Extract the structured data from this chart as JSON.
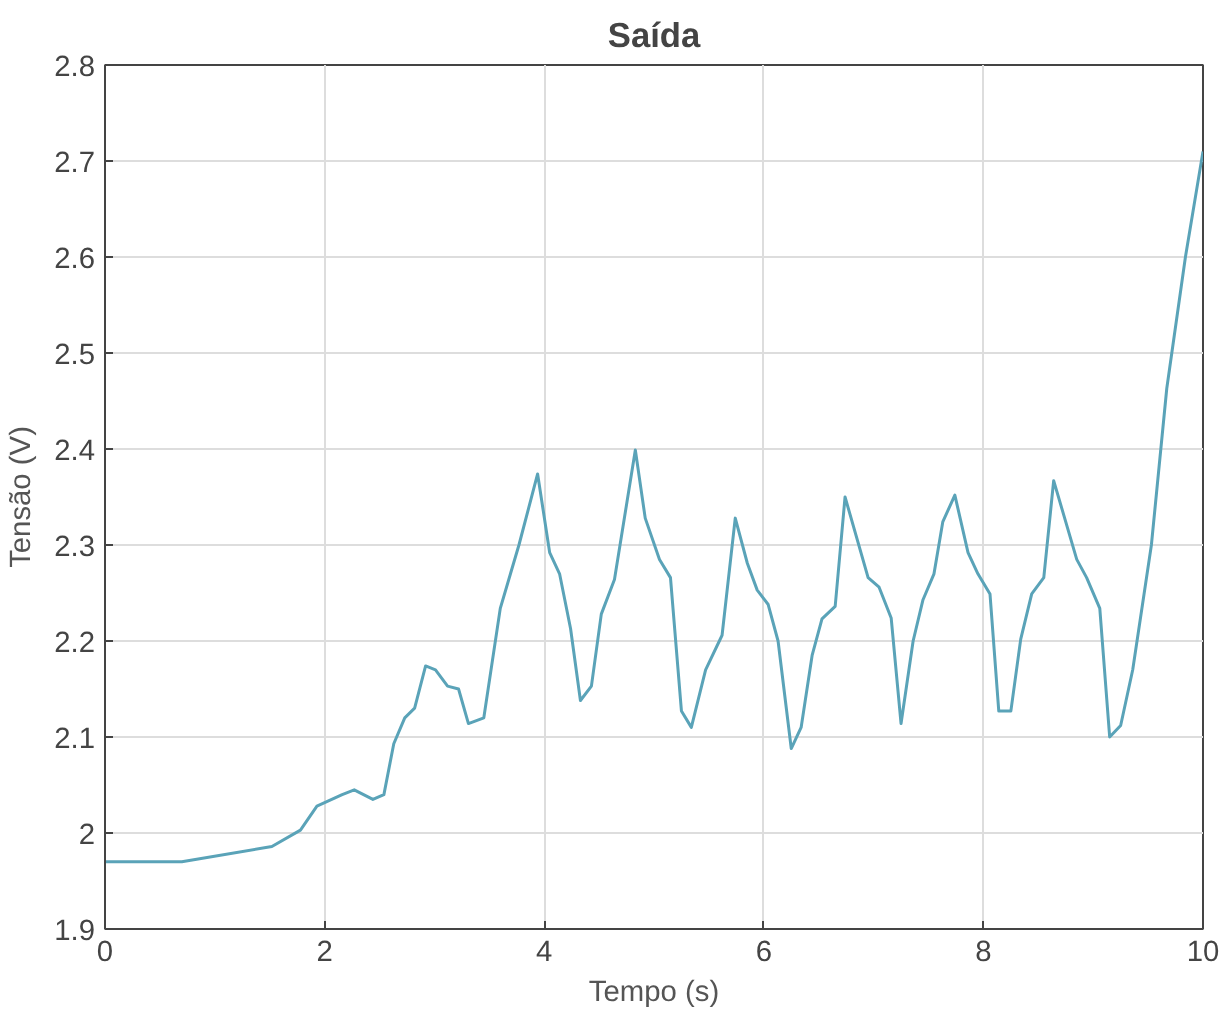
{
  "chart_data": {
    "type": "line",
    "title": "Saída",
    "xlabel": "Tempo (s)",
    "ylabel": "Tensão (V)",
    "xlim": [
      0,
      10
    ],
    "ylim": [
      1.9,
      2.8
    ],
    "xticks": [
      0,
      2,
      4,
      6,
      8,
      10
    ],
    "yticks": [
      1.9,
      2,
      2.1,
      2.2,
      2.3,
      2.4,
      2.5,
      2.6,
      2.7,
      2.8
    ],
    "grid": true,
    "marker": "none",
    "line_style": "solid",
    "series": [
      {
        "color": "#5aa3b8",
        "x": [
          0,
          0.7,
          1.52,
          1.78,
          1.93,
          2.16,
          2.27,
          2.44,
          2.54,
          2.63,
          2.73,
          2.82,
          2.92,
          3.01,
          3.12,
          3.22,
          3.31,
          3.45,
          3.6,
          3.77,
          3.94,
          4.05,
          4.14,
          4.24,
          4.33,
          4.43,
          4.52,
          4.64,
          4.83,
          4.92,
          5.05,
          5.15,
          5.25,
          5.34,
          5.47,
          5.62,
          5.74,
          5.85,
          5.94,
          6.04,
          6.13,
          6.25,
          6.34,
          6.44,
          6.53,
          6.65,
          6.74,
          6.95,
          7.05,
          7.16,
          7.25,
          7.36,
          7.45,
          7.55,
          7.63,
          7.74,
          7.86,
          7.95,
          8.06,
          8.14,
          8.25,
          8.34,
          8.44,
          8.55,
          8.64,
          8.74,
          8.85,
          8.94,
          9.06,
          9.15,
          9.25,
          9.36,
          9.53,
          9.67,
          9.84,
          10
        ],
        "values": [
          1.97,
          1.97,
          1.986,
          2.003,
          2.028,
          2.04,
          2.045,
          2.035,
          2.04,
          2.093,
          2.12,
          2.13,
          2.174,
          2.17,
          2.153,
          2.15,
          2.114,
          2.12,
          2.234,
          2.3,
          2.374,
          2.292,
          2.27,
          2.213,
          2.138,
          2.153,
          2.228,
          2.264,
          2.399,
          2.328,
          2.285,
          2.266,
          2.127,
          2.11,
          2.17,
          2.206,
          2.328,
          2.281,
          2.253,
          2.238,
          2.2,
          2.088,
          2.11,
          2.185,
          2.223,
          2.236,
          2.35,
          2.266,
          2.256,
          2.224,
          2.114,
          2.2,
          2.243,
          2.27,
          2.324,
          2.352,
          2.292,
          2.27,
          2.249,
          2.127,
          2.127,
          2.202,
          2.249,
          2.266,
          2.367,
          2.328,
          2.285,
          2.266,
          2.234,
          2.1,
          2.112,
          2.17,
          2.3,
          2.463,
          2.6,
          2.71
        ]
      }
    ]
  }
}
